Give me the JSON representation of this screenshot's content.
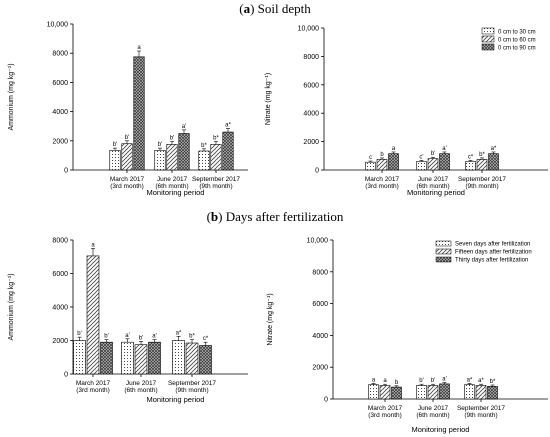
{
  "figure": {
    "section_a": {
      "letter": "a",
      "rest": " Soil depth"
    },
    "section_b": {
      "letter": "b",
      "rest": " Days after fertilization"
    }
  },
  "chart_data": [
    {
      "id": "a-ammonium",
      "type": "bar",
      "ylabel": "Ammonium (mg kg⁻¹)",
      "xlabel": "Monitoring period",
      "ylim": [
        0,
        10000
      ],
      "yticks": [
        "0",
        "2000",
        "4000",
        "6000",
        "8000",
        "10,000"
      ],
      "yticks_values": [
        0,
        2000,
        4000,
        6000,
        8000,
        10000
      ],
      "categories": [
        {
          "line1": "March 2017",
          "line2": "(3rd month)"
        },
        {
          "line1": "June 2017",
          "line2": "(6th month)"
        },
        {
          "line1": "September 2017",
          "line2": "(9th month)"
        }
      ],
      "series": [
        {
          "name": "0 cm to 30 cm",
          "values": [
            1350,
            1350,
            1300
          ],
          "errors": [
            150,
            150,
            150
          ],
          "labels": [
            "b'",
            "b'",
            "b*"
          ]
        },
        {
          "name": "0 cm to 60 cm",
          "values": [
            1800,
            1750,
            1750
          ],
          "errors": [
            200,
            200,
            200
          ],
          "labels": [
            "b'",
            "b'",
            "b*"
          ]
        },
        {
          "name": "0 cm to 90 cm",
          "values": [
            7750,
            2500,
            2600
          ],
          "errors": [
            400,
            250,
            250
          ],
          "labels": [
            "a",
            "a'",
            "a*"
          ]
        }
      ],
      "legend": "none"
    },
    {
      "id": "a-nitrate",
      "type": "bar",
      "ylabel": "Nitrate (mg kg⁻¹)",
      "xlabel": "Monitoring period",
      "ylim": [
        0,
        10000
      ],
      "yticks": [
        "0",
        "2000",
        "4000",
        "6000",
        "8000",
        "10,000"
      ],
      "yticks_values": [
        0,
        2000,
        4000,
        6000,
        8000,
        10000
      ],
      "categories": [
        {
          "line1": "March 2017",
          "line2": "(3rd month)"
        },
        {
          "line1": "June 2017",
          "line2": "(6th month)"
        },
        {
          "line1": "September 2017",
          "line2": "(9th month)"
        }
      ],
      "series": [
        {
          "name": "0 cm to 30 cm",
          "values": [
            550,
            600,
            600
          ],
          "errors": [
            80,
            80,
            80
          ],
          "labels": [
            "c",
            "c'",
            "c*"
          ]
        },
        {
          "name": "0 cm to 60 cm",
          "values": [
            750,
            800,
            750
          ],
          "errors": [
            100,
            100,
            100
          ],
          "labels": [
            "b",
            "b'",
            "b*"
          ]
        },
        {
          "name": "0 cm to 90 cm",
          "values": [
            1150,
            1150,
            1150
          ],
          "errors": [
            120,
            120,
            120
          ],
          "labels": [
            "a",
            "a'",
            "a*"
          ]
        }
      ],
      "legend": "top-right"
    },
    {
      "id": "b-ammonium",
      "type": "bar",
      "ylabel": "Ammonium (mg kg⁻¹)",
      "xlabel": "Monitoring period",
      "ylim": [
        0,
        8000
      ],
      "yticks": [
        "0",
        "2000",
        "4000",
        "6000",
        "8000"
      ],
      "yticks_values": [
        0,
        2000,
        4000,
        6000,
        8000
      ],
      "categories": [
        {
          "line1": "March 2017",
          "line2": "(3rd month)"
        },
        {
          "line1": "June 2017",
          "line2": "(6th month)"
        },
        {
          "line1": "September 2017",
          "line2": "(9th month)"
        }
      ],
      "series": [
        {
          "name": "Seven days after fertilization",
          "values": [
            2000,
            1900,
            2000
          ],
          "errors": [
            200,
            200,
            250
          ],
          "labels": [
            "b'",
            "a'",
            "a*"
          ]
        },
        {
          "name": "Fifteen days after fertilization",
          "values": [
            7050,
            1750,
            1850
          ],
          "errors": [
            450,
            200,
            200
          ],
          "labels": [
            "a",
            "b'",
            "b*"
          ]
        },
        {
          "name": "Thirty days after fertilization",
          "values": [
            1900,
            1900,
            1700
          ],
          "errors": [
            150,
            150,
            200
          ],
          "labels": [
            "b'",
            "a'",
            "c*"
          ]
        }
      ],
      "legend": "none"
    },
    {
      "id": "b-nitrate",
      "type": "bar",
      "ylabel": "Nitrate (mg kg⁻¹)",
      "xlabel": "Monitoring period",
      "ylim": [
        0,
        10000
      ],
      "yticks": [
        "0",
        "2000",
        "4000",
        "6000",
        "8000",
        "10,000"
      ],
      "yticks_values": [
        0,
        2000,
        4000,
        6000,
        8000,
        10000
      ],
      "categories": [
        {
          "line1": "March 2017",
          "line2": "(3rd month)"
        },
        {
          "line1": "June 2017",
          "line2": "(6th month)"
        },
        {
          "line1": "September 2017",
          "line2": "(9th month)"
        }
      ],
      "series": [
        {
          "name": "Seven days after fertilization",
          "values": [
            900,
            850,
            900
          ],
          "errors": [
            80,
            80,
            80
          ],
          "labels": [
            "a",
            "b'",
            "a*"
          ]
        },
        {
          "name": "Fifteen days after fertilization",
          "values": [
            850,
            850,
            850
          ],
          "errors": [
            80,
            80,
            80
          ],
          "labels": [
            "a",
            "b'",
            "a*"
          ]
        },
        {
          "name": "Thirty days after fertilization",
          "values": [
            750,
            950,
            800
          ],
          "errors": [
            80,
            80,
            80
          ],
          "labels": [
            "b",
            "a'",
            "b*"
          ]
        }
      ],
      "legend": "top-right"
    }
  ]
}
